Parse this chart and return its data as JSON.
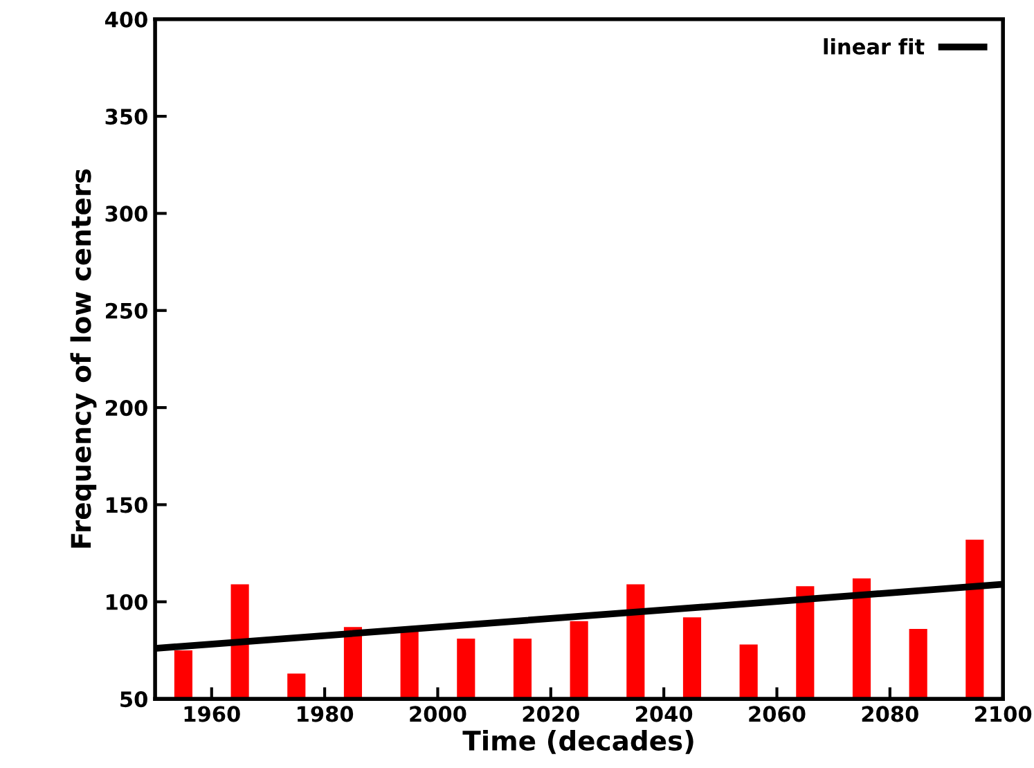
{
  "chart_data": {
    "type": "bar",
    "xlabel": "Time (decades)",
    "ylabel": "Frequency of low centers",
    "xlim": [
      1950,
      2100
    ],
    "xticks": [
      1960,
      1980,
      2000,
      2020,
      2040,
      2060,
      2080,
      2100
    ],
    "ylim": [
      50,
      400
    ],
    "yticks": [
      50,
      100,
      150,
      200,
      250,
      300,
      350,
      400
    ],
    "grid": false,
    "legend": "top right",
    "series": [
      {
        "color": "#ff0000",
        "x": [
          1955,
          1965,
          1975,
          1985,
          1995,
          2005,
          2015,
          2025,
          2035,
          2045,
          2055,
          2065,
          2075,
          2085,
          2095
        ],
        "values": [
          75,
          109,
          63,
          87,
          86,
          81,
          81,
          90,
          109,
          92,
          78,
          108,
          112,
          86,
          132
        ]
      },
      {
        "type": "line",
        "name": "linear fit",
        "color": "#000000",
        "x": [
          1950,
          2100
        ],
        "values": [
          76,
          109
        ]
      }
    ]
  }
}
